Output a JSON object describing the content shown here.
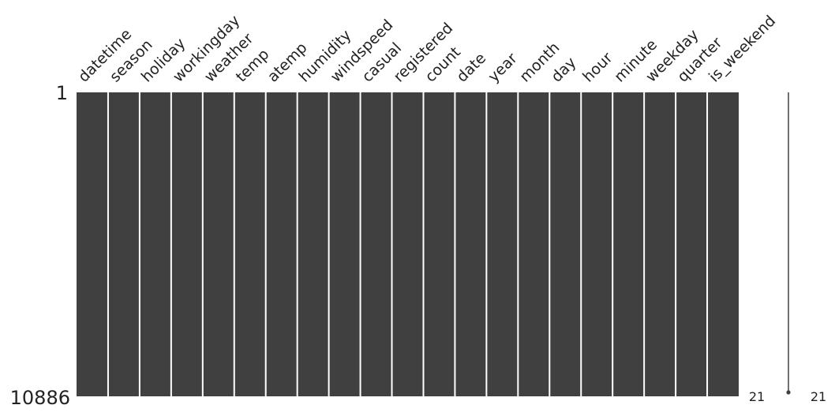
{
  "chart_data": {
    "type": "heatmap",
    "title": "",
    "columns": [
      "datetime",
      "season",
      "holiday",
      "workingday",
      "weather",
      "temp",
      "atemp",
      "humidity",
      "windspeed",
      "casual",
      "registered",
      "count",
      "date",
      "year",
      "month",
      "day",
      "hour",
      "minute",
      "weekday",
      "quarter",
      "is_weekend"
    ],
    "row_range": [
      1,
      10886
    ],
    "row_labels": [
      "1",
      "10886"
    ],
    "missing_counts": [
      0,
      0,
      0,
      0,
      0,
      0,
      0,
      0,
      0,
      0,
      0,
      0,
      0,
      0,
      0,
      0,
      0,
      0,
      0,
      0,
      0
    ],
    "sparkline": {
      "min_label": "21",
      "max_label": "21",
      "completeness": [
        21,
        21
      ]
    },
    "colors": {
      "present": "#404040",
      "missing": "#ffffff",
      "separator": "#ffffff",
      "text": "#222222"
    }
  }
}
